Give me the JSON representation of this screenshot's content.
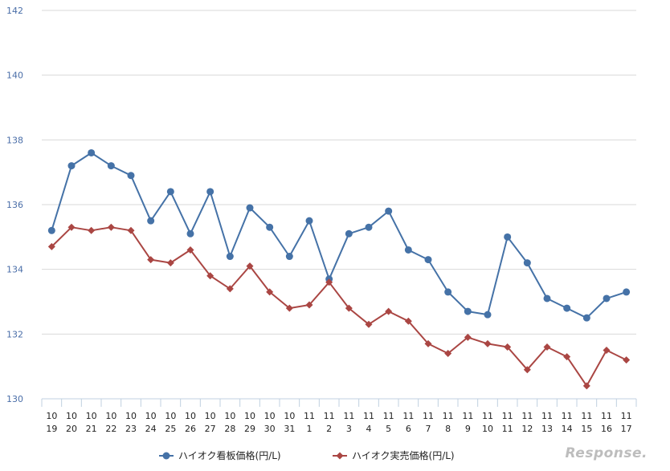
{
  "chart_data": {
    "type": "line",
    "x": [
      "10 19",
      "10 20",
      "10 21",
      "10 22",
      "10 23",
      "10 24",
      "10 25",
      "10 26",
      "10 27",
      "10 28",
      "10 29",
      "10 30",
      "10 31",
      "11 1",
      "11 2",
      "11 3",
      "11 4",
      "11 5",
      "11 6",
      "11 7",
      "11 8",
      "11 9",
      "11 10",
      "11 11",
      "11 12",
      "11 13",
      "11 14",
      "11 15",
      "11 16",
      "11 17"
    ],
    "x_month": [
      "10",
      "10",
      "10",
      "10",
      "10",
      "10",
      "10",
      "10",
      "10",
      "10",
      "10",
      "10",
      "10",
      "11",
      "11",
      "11",
      "11",
      "11",
      "11",
      "11",
      "11",
      "11",
      "11",
      "11",
      "11",
      "11",
      "11",
      "11",
      "11",
      "11"
    ],
    "x_day": [
      "19",
      "20",
      "21",
      "22",
      "23",
      "24",
      "25",
      "26",
      "27",
      "28",
      "29",
      "30",
      "31",
      "1",
      "2",
      "3",
      "4",
      "5",
      "6",
      "7",
      "8",
      "9",
      "10",
      "11",
      "12",
      "13",
      "14",
      "15",
      "16",
      "17"
    ],
    "series": [
      {
        "name": "ハイオク看板価格(円/L)",
        "color": "#4572a7",
        "marker": "circle",
        "values": [
          135.2,
          137.2,
          137.6,
          137.2,
          136.9,
          135.5,
          136.4,
          135.1,
          136.4,
          134.4,
          135.9,
          135.3,
          134.4,
          135.5,
          133.7,
          135.1,
          135.3,
          135.8,
          134.6,
          134.3,
          133.3,
          132.7,
          132.6,
          135.0,
          134.2,
          133.1,
          132.8,
          132.5,
          133.1,
          133.3
        ]
      },
      {
        "name": "ハイオク実売価格(円/L)",
        "color": "#aa4643",
        "marker": "diamond",
        "values": [
          134.7,
          135.3,
          135.2,
          135.3,
          135.2,
          134.3,
          134.2,
          134.6,
          133.8,
          133.4,
          134.1,
          133.3,
          132.8,
          132.9,
          133.6,
          132.8,
          132.3,
          132.7,
          132.4,
          131.7,
          131.4,
          131.9,
          131.7,
          131.6,
          130.9,
          131.6,
          131.3,
          130.4,
          131.5,
          131.2
        ]
      }
    ],
    "ylim": [
      130,
      142
    ],
    "yticks": [
      130,
      132,
      134,
      136,
      138,
      140,
      142
    ],
    "grid": true,
    "legend_position": "bottom"
  },
  "watermark": "Response."
}
